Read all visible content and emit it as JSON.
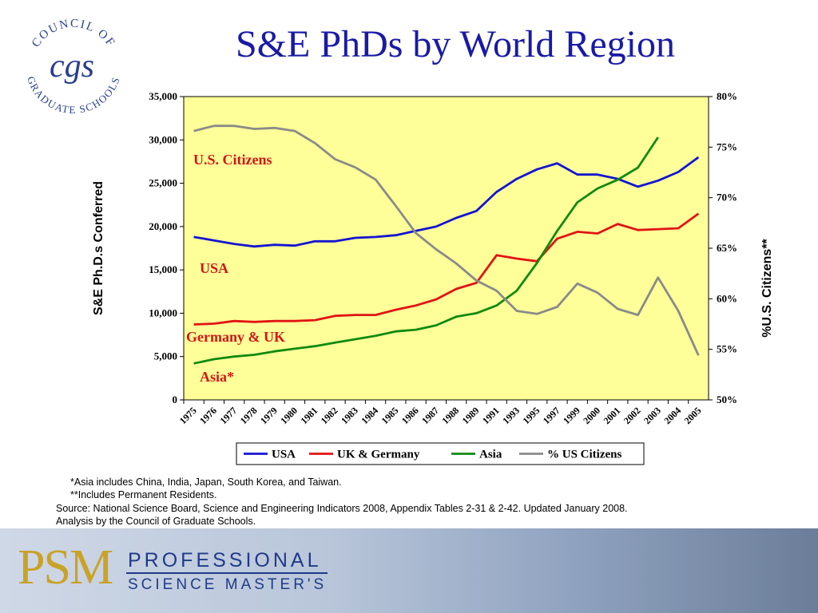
{
  "title": "S&E PhDs by World Region",
  "logo": {
    "text_top": "COUNCIL OF",
    "text_bottom": "GRADUATE SCHOOLS",
    "monogram": "cgs"
  },
  "chart_data": {
    "type": "line",
    "categories": [
      "1975",
      "1976",
      "1977",
      "1978",
      "1979",
      "1980",
      "1981",
      "1982",
      "1983",
      "1984",
      "1985",
      "1986",
      "1987",
      "1988",
      "1989",
      "1991",
      "1993",
      "1995",
      "1997",
      "1999",
      "2000",
      "2001",
      "2002",
      "2003",
      "2004",
      "2005"
    ],
    "ylabel": "S&E Ph.D.s Conferred",
    "y2label": "%U.S. Citizens**",
    "ylim": [
      0,
      35000
    ],
    "yticks": [
      0,
      5000,
      10000,
      15000,
      20000,
      25000,
      30000,
      35000
    ],
    "ytick_labels": [
      "0",
      "5,000",
      "10,000",
      "15,000",
      "20,000",
      "25,000",
      "30,000",
      "35,000"
    ],
    "y2lim": [
      50,
      80
    ],
    "y2ticks": [
      50,
      55,
      60,
      65,
      70,
      75,
      80
    ],
    "y2tick_labels": [
      "50%",
      "55%",
      "60%",
      "65%",
      "70%",
      "75%",
      "80%"
    ],
    "series": [
      {
        "name": "USA",
        "axis": "left",
        "color": "#1414d2",
        "values": [
          18800,
          18400,
          18000,
          17700,
          17900,
          17800,
          18300,
          18300,
          18700,
          18800,
          19000,
          19500,
          20000,
          21000,
          21800,
          24000,
          25500,
          26600,
          27300,
          26000,
          26000,
          25500,
          24600,
          25300,
          26300,
          28000
        ]
      },
      {
        "name": "UK & Germany",
        "axis": "left",
        "color": "#e01414",
        "values": [
          8700,
          8800,
          9100,
          9000,
          9100,
          9100,
          9200,
          9700,
          9800,
          9800,
          10400,
          10900,
          11600,
          12800,
          13500,
          16700,
          16300,
          16000,
          18600,
          19400,
          19200,
          20300,
          19600,
          19700,
          19800,
          21500
        ]
      },
      {
        "name": "Asia",
        "axis": "left",
        "color": "#108a10",
        "values": [
          4200,
          4700,
          5000,
          5200,
          5600,
          5900,
          6200,
          6600,
          7000,
          7400,
          7900,
          8100,
          8600,
          9600,
          10000,
          10900,
          12600,
          15800,
          19500,
          22800,
          24400,
          25400,
          26800,
          30300,
          null,
          null
        ]
      },
      {
        "name": "% US Citizens",
        "axis": "right",
        "color": "#8a8a8a",
        "values": [
          76.6,
          77.1,
          77.1,
          76.8,
          76.9,
          76.6,
          75.4,
          73.8,
          73.0,
          71.8,
          69.2,
          66.5,
          64.9,
          63.5,
          61.8,
          60.8,
          58.8,
          58.5,
          59.2,
          61.5,
          60.6,
          59.0,
          58.4,
          62.1,
          58.8,
          54.4
        ]
      }
    ],
    "annotations": [
      {
        "text": "U.S. Citizens",
        "color": "#d01818"
      },
      {
        "text": "USA",
        "color": "#d01818"
      },
      {
        "text": "Germany & UK",
        "color": "#d01818"
      },
      {
        "text": "Asia*",
        "color": "#d01818"
      }
    ],
    "plot_background": "#ffff99",
    "legend_position": "bottom"
  },
  "notes": {
    "asia": "*Asia includes China, India, Japan, South Korea, and Taiwan.",
    "residents": "**Includes Permanent Residents.",
    "source_line1": "Source: National Science Board, Science and Engineering Indicators 2008, Appendix Tables 2-31 &  2-42. Updated January 2008.",
    "source_line2": "Analysis by the Council of Graduate Schools."
  },
  "footer": {
    "mark": "PSM",
    "line1": "PROFESSIONAL",
    "line2": "SCIENCE MASTER'S"
  }
}
